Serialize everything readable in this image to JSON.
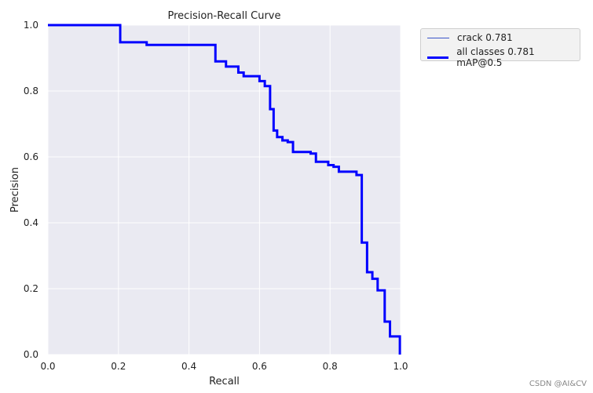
{
  "chart_data": {
    "type": "line",
    "title": "Precision-Recall Curve",
    "xlabel": "Recall",
    "ylabel": "Precision",
    "xlim": [
      0,
      1
    ],
    "ylim": [
      0,
      1
    ],
    "xticks": [
      "0.0",
      "0.2",
      "0.4",
      "0.6",
      "0.8",
      "1.0"
    ],
    "yticks": [
      "0.0",
      "0.2",
      "0.4",
      "0.6",
      "0.8",
      "1.0"
    ],
    "grid": true,
    "legend_position": "outside-top-right",
    "series": [
      {
        "name": "crack 0.781",
        "color": "#3a55c8",
        "style": "thin",
        "x": [
          0.0,
          0.205,
          0.205,
          0.28,
          0.28,
          0.475,
          0.475,
          0.505,
          0.505,
          0.54,
          0.54,
          0.555,
          0.555,
          0.6,
          0.6,
          0.615,
          0.615,
          0.63,
          0.63,
          0.64,
          0.64,
          0.65,
          0.65,
          0.665,
          0.665,
          0.68,
          0.68,
          0.695,
          0.695,
          0.745,
          0.745,
          0.76,
          0.76,
          0.795,
          0.795,
          0.81,
          0.81,
          0.825,
          0.825,
          0.875,
          0.875,
          0.89,
          0.89,
          0.905,
          0.905,
          0.92,
          0.92,
          0.935,
          0.935,
          0.955,
          0.955,
          0.97,
          0.97,
          0.985,
          0.985,
          0.998,
          0.998
        ],
        "y": [
          1.0,
          1.0,
          0.948,
          0.948,
          0.94,
          0.94,
          0.89,
          0.89,
          0.874,
          0.874,
          0.856,
          0.856,
          0.845,
          0.845,
          0.83,
          0.83,
          0.815,
          0.815,
          0.745,
          0.745,
          0.68,
          0.68,
          0.66,
          0.66,
          0.65,
          0.65,
          0.645,
          0.645,
          0.615,
          0.615,
          0.61,
          0.61,
          0.585,
          0.585,
          0.575,
          0.575,
          0.57,
          0.57,
          0.555,
          0.555,
          0.545,
          0.545,
          0.34,
          0.34,
          0.25,
          0.25,
          0.23,
          0.23,
          0.195,
          0.195,
          0.1,
          0.1,
          0.055,
          0.055,
          0.055,
          0.055,
          0.0
        ]
      },
      {
        "name": "all classes 0.781 mAP@0.5",
        "color": "#0000ff",
        "style": "thick",
        "x": [
          0.0,
          0.205,
          0.205,
          0.28,
          0.28,
          0.475,
          0.475,
          0.505,
          0.505,
          0.54,
          0.54,
          0.555,
          0.555,
          0.6,
          0.6,
          0.615,
          0.615,
          0.63,
          0.63,
          0.64,
          0.64,
          0.65,
          0.65,
          0.665,
          0.665,
          0.68,
          0.68,
          0.695,
          0.695,
          0.745,
          0.745,
          0.76,
          0.76,
          0.795,
          0.795,
          0.81,
          0.81,
          0.825,
          0.825,
          0.875,
          0.875,
          0.89,
          0.89,
          0.905,
          0.905,
          0.92,
          0.92,
          0.935,
          0.935,
          0.955,
          0.955,
          0.97,
          0.97,
          0.985,
          0.985,
          0.998,
          0.998
        ],
        "y": [
          1.0,
          1.0,
          0.948,
          0.948,
          0.94,
          0.94,
          0.89,
          0.89,
          0.874,
          0.874,
          0.856,
          0.856,
          0.845,
          0.845,
          0.83,
          0.83,
          0.815,
          0.815,
          0.745,
          0.745,
          0.68,
          0.68,
          0.66,
          0.66,
          0.65,
          0.65,
          0.645,
          0.645,
          0.615,
          0.615,
          0.61,
          0.61,
          0.585,
          0.585,
          0.575,
          0.575,
          0.57,
          0.57,
          0.555,
          0.555,
          0.545,
          0.545,
          0.34,
          0.34,
          0.25,
          0.25,
          0.23,
          0.23,
          0.195,
          0.195,
          0.1,
          0.1,
          0.055,
          0.055,
          0.055,
          0.055,
          0.0
        ]
      }
    ]
  },
  "watermark": "CSDN @AI&CV"
}
